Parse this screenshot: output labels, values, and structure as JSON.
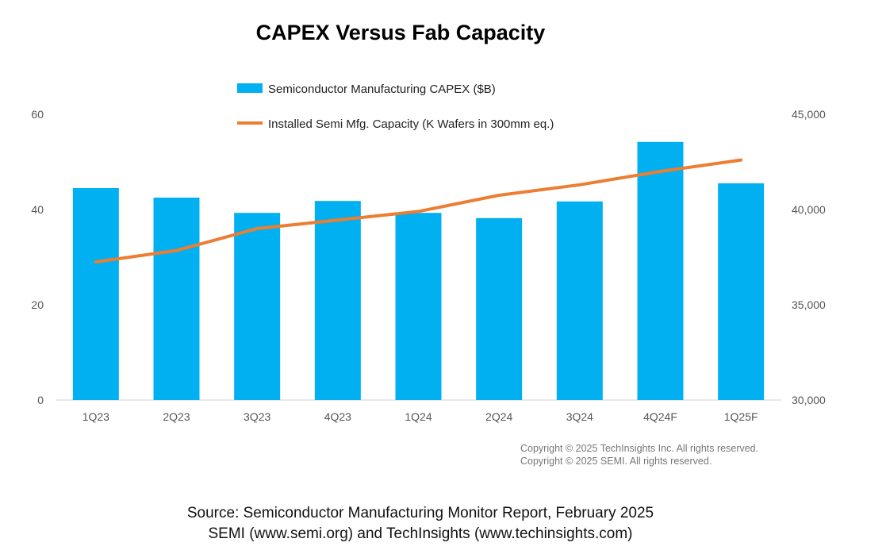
{
  "chart_data": {
    "type": "bar",
    "title": "CAPEX Versus Fab Capacity",
    "categories": [
      "1Q23",
      "2Q23",
      "3Q23",
      "4Q23",
      "1Q24",
      "2Q24",
      "3Q24",
      "4Q24F",
      "1Q25F"
    ],
    "series": [
      {
        "name": "Semiconductor Manufacturing CAPEX ($B)",
        "type": "bar",
        "axis": "left",
        "color": "#00B0F0",
        "values": [
          44.5,
          42.5,
          39.3,
          41.8,
          39.3,
          38.2,
          41.7,
          54.2,
          45.5
        ]
      },
      {
        "name": "Installed Semi Mfg. Capacity (K Wafers in 300mm eq.)",
        "type": "line",
        "axis": "right",
        "color": "#ED7D31",
        "values": [
          37250,
          37850,
          39000,
          39450,
          39900,
          40750,
          41300,
          42000,
          42600
        ]
      }
    ],
    "left_axis": {
      "ylim": [
        0,
        60
      ],
      "ticks": [
        "0",
        "20",
        "40",
        "60"
      ],
      "tick_values": [
        0,
        20,
        40,
        60
      ]
    },
    "right_axis": {
      "ylim": [
        30000,
        45000
      ],
      "ticks": [
        "30,000",
        "35,000",
        "40,000",
        "45,000"
      ],
      "tick_values": [
        30000,
        35000,
        40000,
        45000
      ]
    },
    "legend_position": "top-center",
    "grid": false
  },
  "copyright": {
    "line1": "Copyright © 2025 TechInsights Inc.  All rights reserved.",
    "line2": "Copyright © 2025 SEMI.  All rights reserved."
  },
  "source": {
    "line1": "Source: Semiconductor Manufacturing Monitor Report, February 2025",
    "line2": "SEMI (www.semi.org) and TechInsights (www.techinsights.com)"
  }
}
